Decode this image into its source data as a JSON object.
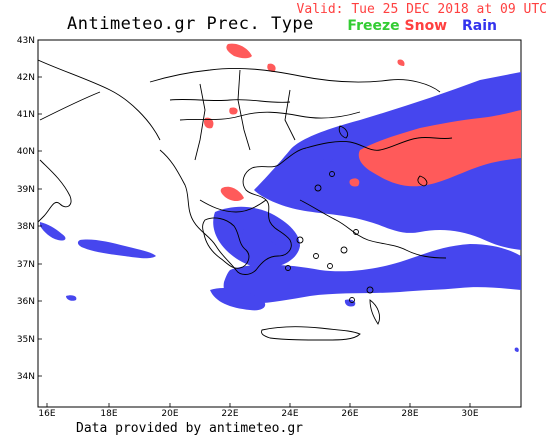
{
  "header": {
    "title": "Antimeteo.gr Prec. Type",
    "valid": "Valid: Tue 25 DEC 2018 at 09 UTC"
  },
  "legend": {
    "freeze": "Freeze",
    "snow": "Snow",
    "rain": "Rain",
    "colors": {
      "freeze": "#33cc33",
      "snow": "#ff5a5a",
      "rain": "#4444ee"
    }
  },
  "axes": {
    "lon_labels": [
      "16E",
      "18E",
      "20E",
      "22E",
      "24E",
      "26E",
      "28E",
      "30E"
    ],
    "lat_labels": [
      "43N",
      "42N",
      "41N",
      "40N",
      "39N",
      "38N",
      "37N",
      "36N",
      "35N",
      "34N"
    ]
  },
  "footer": "Data provided by antimeteo.gr"
}
